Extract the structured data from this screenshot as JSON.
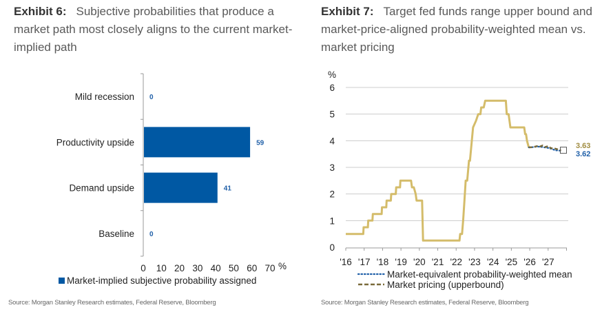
{
  "exhibit6": {
    "label": "Exhibit 6:",
    "title": "Subjective probabilities that produce a market path most closely aligns to the current market-implied path",
    "source": "Source: Morgan Stanley Research estimates, Federal Reserve, Bloomberg"
  },
  "exhibit7": {
    "label": "Exhibit 7:",
    "title": "Target fed funds range upper bound and market-price-aligned probability-weighted mean vs. market pricing",
    "source": "Source: Morgan Stanley Research estimates, Federal Reserve, Bloomberg"
  },
  "colors": {
    "bar": "#0058a3",
    "bar_label": "#1f5fa8",
    "fed_funds": "#d4bc6a",
    "market_pricing": "#7a6a3a",
    "prob_weighted": "#1f5fa8",
    "gridline": "#cccccc",
    "axis": "#999999"
  },
  "chart_data": [
    {
      "type": "bar",
      "orientation": "horizontal",
      "title": "Subjective probabilities that produce a market path most closely aligns to the current market-implied path",
      "categories": [
        "Mild recession",
        "Productivity upside",
        "Demand upside",
        "Baseline"
      ],
      "values": [
        0,
        59,
        41,
        0
      ],
      "value_labels": [
        "0",
        "59",
        "41",
        "0"
      ],
      "xlabel": "%",
      "xlim": [
        0,
        70
      ],
      "xticks": [
        0,
        10,
        20,
        30,
        40,
        50,
        60,
        70
      ],
      "xtick_labels": [
        "0",
        "10",
        "20",
        "30",
        "40",
        "50",
        "60",
        "70"
      ],
      "unit_label": "%",
      "legend": [
        "Market-implied subjective probability assigned"
      ],
      "legend_position": "bottom-left",
      "grid": false
    },
    {
      "type": "line",
      "title": "Target fed funds range upper bound and market-price-aligned probability-weighted mean vs. market pricing",
      "ylabel": "%",
      "ylim": [
        0,
        6
      ],
      "yticks": [
        0,
        1,
        2,
        3,
        4,
        5,
        6
      ],
      "ytick_labels": [
        "0",
        "1",
        "2",
        "3",
        "4",
        "5",
        "6"
      ],
      "xlim": [
        2016,
        2028
      ],
      "xticks": [
        2016,
        2017,
        2018,
        2019,
        2020,
        2021,
        2022,
        2023,
        2024,
        2025,
        2026,
        2027,
        2028
      ],
      "xtick_labels": [
        "'16",
        "'17",
        "'18",
        "'19",
        "'20",
        "'21",
        "'22",
        "'23",
        "'24",
        "'25",
        "'26",
        "'27"
      ],
      "grid": true,
      "series": [
        {
          "name": "Target fed funds range upper bound",
          "style": "solid",
          "points": [
            [
              2016.0,
              0.5
            ],
            [
              2016.95,
              0.5
            ],
            [
              2016.97,
              0.75
            ],
            [
              2017.2,
              0.75
            ],
            [
              2017.22,
              1.0
            ],
            [
              2017.45,
              1.0
            ],
            [
              2017.47,
              1.25
            ],
            [
              2017.95,
              1.25
            ],
            [
              2017.97,
              1.5
            ],
            [
              2018.2,
              1.5
            ],
            [
              2018.22,
              1.75
            ],
            [
              2018.45,
              1.75
            ],
            [
              2018.47,
              2.0
            ],
            [
              2018.72,
              2.0
            ],
            [
              2018.74,
              2.25
            ],
            [
              2018.95,
              2.25
            ],
            [
              2018.97,
              2.5
            ],
            [
              2019.55,
              2.5
            ],
            [
              2019.6,
              2.25
            ],
            [
              2019.7,
              2.25
            ],
            [
              2019.8,
              2.0
            ],
            [
              2019.85,
              1.75
            ],
            [
              2020.15,
              1.75
            ],
            [
              2020.2,
              0.25
            ],
            [
              2022.18,
              0.25
            ],
            [
              2022.22,
              0.5
            ],
            [
              2022.32,
              0.5
            ],
            [
              2022.38,
              1.0
            ],
            [
              2022.45,
              1.75
            ],
            [
              2022.52,
              2.5
            ],
            [
              2022.6,
              2.5
            ],
            [
              2022.7,
              3.25
            ],
            [
              2022.75,
              3.25
            ],
            [
              2022.85,
              4.0
            ],
            [
              2022.92,
              4.5
            ],
            [
              2023.08,
              4.75
            ],
            [
              2023.2,
              5.0
            ],
            [
              2023.32,
              5.0
            ],
            [
              2023.36,
              5.25
            ],
            [
              2023.5,
              5.25
            ],
            [
              2023.58,
              5.5
            ],
            [
              2024.7,
              5.5
            ],
            [
              2024.75,
              5.0
            ],
            [
              2024.85,
              5.0
            ],
            [
              2024.9,
              4.75
            ],
            [
              2024.95,
              4.5
            ],
            [
              2025.7,
              4.5
            ],
            [
              2025.75,
              4.25
            ],
            [
              2025.8,
              4.25
            ],
            [
              2025.85,
              4.0
            ],
            [
              2025.95,
              3.75
            ]
          ]
        },
        {
          "name": "Market pricing (upperbound)",
          "style": "dashed",
          "points": [
            [
              2025.95,
              3.75
            ],
            [
              2026.2,
              3.76
            ],
            [
              2026.4,
              3.8
            ],
            [
              2026.55,
              3.78
            ],
            [
              2026.7,
              3.82
            ],
            [
              2026.85,
              3.76
            ],
            [
              2027.0,
              3.8
            ],
            [
              2027.15,
              3.72
            ],
            [
              2027.3,
              3.72
            ],
            [
              2027.5,
              3.68
            ],
            [
              2027.7,
              3.63
            ]
          ],
          "end_label": "3.63"
        },
        {
          "name": "Market-equivalent probability-weighted mean",
          "style": "dotted",
          "points": [
            [
              2025.95,
              3.75
            ],
            [
              2026.2,
              3.76
            ],
            [
              2026.4,
              3.78
            ],
            [
              2026.6,
              3.77
            ],
            [
              2026.8,
              3.75
            ],
            [
              2027.0,
              3.73
            ],
            [
              2027.2,
              3.69
            ],
            [
              2027.4,
              3.64
            ],
            [
              2027.6,
              3.63
            ],
            [
              2027.7,
              3.62
            ]
          ],
          "end_label": "3.62"
        }
      ],
      "legend": [
        "Market-equivalent probability-weighted mean",
        "Market pricing (upperbound)"
      ],
      "legend_position": "bottom"
    }
  ]
}
